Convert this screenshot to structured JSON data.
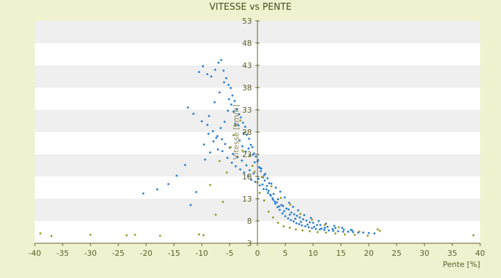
{
  "chart_data": {
    "type": "scatter",
    "title": "VITESSE vs PENTE",
    "xlabel": "Pente [%]",
    "ylabel": "Vitesse [km/h]",
    "xlim": [
      -40,
      40
    ],
    "ylim": [
      3,
      53
    ],
    "x_ticks": [
      -40,
      -35,
      -30,
      -25,
      -20,
      -15,
      -10,
      -5,
      0,
      5,
      10,
      15,
      20,
      25,
      30,
      35,
      40
    ],
    "y_ticks": [
      3,
      8,
      13,
      18,
      23,
      28,
      33,
      38,
      43,
      48,
      53
    ],
    "x_tick_labels": [
      "-40",
      "-35",
      "-30",
      "-25",
      "-20",
      "-15",
      "-10",
      "-5",
      "0",
      "5",
      "10",
      "15",
      "20",
      "25",
      "30",
      "35",
      "40"
    ],
    "y_tick_labels": [
      "3",
      "8",
      "13",
      "18",
      "23",
      "28",
      "33",
      "38",
      "43",
      "48",
      "53"
    ],
    "grid": "horizontal bands",
    "legend": "none",
    "colors": {
      "background": "#eef2cf",
      "band_light": "#ffffff",
      "band_dark": "#efefef",
      "series_main": "#2f7fd0",
      "series_second": "#9a9a2a",
      "axis": "#5c5c2a"
    },
    "series": [
      {
        "color": "#2f7fd0",
        "x": [
          -10.5,
          -9.8,
          -9,
          -8.3,
          -7.6,
          -7,
          -6.5,
          -6.1,
          -5.6,
          -5.2,
          -4.8,
          -4.5,
          -4.1,
          -3.7,
          -3.3,
          -3,
          -2.6,
          -2.2,
          -1.9,
          -1.5,
          -1.2,
          -0.9,
          -0.6,
          -0.3,
          0,
          0.3,
          0.6,
          1,
          1.3,
          1.7,
          2,
          2.4,
          2.8,
          3.2,
          3.6,
          4,
          4.5,
          5,
          5.5,
          6,
          6.5,
          7,
          7.5,
          8,
          8.6,
          9.2,
          9.8,
          10.5,
          11.2,
          12,
          12.8,
          13.6,
          14.5,
          15.4,
          16.3,
          17.2,
          18.1,
          19,
          20,
          21,
          -12.5,
          -11.5,
          -10,
          -9,
          -8,
          -7.2,
          -6.4,
          -5.8,
          -5,
          -4.4,
          -3.6,
          -2.8,
          -2,
          -1.4,
          -0.7,
          0.2,
          0.9,
          1.6,
          2.3,
          3.1,
          3.9,
          4.8,
          5.8,
          6.8,
          7.8,
          9,
          10.2,
          11.5,
          -8.8,
          -7.9,
          -7.1,
          -6.3,
          -5.4,
          -4.6,
          -3.9,
          -3.1,
          -2.4,
          -1.7,
          -1.1,
          -0.4,
          0.4,
          1.1,
          1.9,
          2.7,
          3.5,
          4.3,
          5.2,
          6.1,
          7.1,
          8.2,
          9.4,
          10.7,
          12.1,
          13.5,
          -16,
          -14.5,
          -13,
          -20.5,
          -18,
          -12,
          -11,
          -9.6,
          -8.7,
          -7.7,
          -6.8,
          -6,
          -5.1,
          -4.3,
          -3.4,
          -2.5,
          -1.6,
          -0.8,
          0.1,
          0.7,
          1.4,
          2.1,
          2.9,
          3.7,
          4.6,
          5.6,
          6.6,
          7.6,
          8.8,
          10,
          11.3,
          12.6,
          14,
          15.5,
          17,
          -9.4,
          -8.5,
          -7.4,
          -6.6,
          -5.9,
          -5.3,
          -4.7,
          -4,
          -3.2,
          -2.7,
          -2.1,
          -1.3,
          -0.5,
          0.5,
          1.2,
          1.8,
          2.5,
          3.3,
          4.1,
          4.9,
          5.7,
          6.4,
          7.3,
          8.4,
          9.6,
          11,
          12.3,
          13.8,
          15.2,
          16.8
        ],
        "y": [
          41.5,
          42.8,
          41,
          40.5,
          42,
          43.6,
          44.2,
          41.8,
          40.1,
          38.6,
          37.9,
          36.2,
          35,
          33.1,
          32,
          31.3,
          30.1,
          29.2,
          27.4,
          26.5,
          25.1,
          24.6,
          23.2,
          22.5,
          21.4,
          20.1,
          19.2,
          17.8,
          17.1,
          15.9,
          14.8,
          13.7,
          12.8,
          11.9,
          11.1,
          10.5,
          9.7,
          9.1,
          8.6,
          8.2,
          7.9,
          7.5,
          7.3,
          7,
          6.8,
          6.6,
          6.4,
          6.2,
          6.1,
          6,
          5.9,
          5.8,
          5.7,
          5.6,
          5.6,
          5.5,
          5.4,
          5.4,
          5.3,
          5.2,
          33.5,
          32.1,
          30.4,
          29.6,
          28.2,
          27.1,
          26.4,
          25.3,
          24.5,
          23.1,
          22.4,
          21.6,
          20.5,
          19.4,
          18.7,
          17.5,
          16.2,
          15.1,
          13.9,
          12.4,
          11.3,
          10.2,
          9.4,
          8.5,
          7.8,
          7.2,
          6.7,
          6.3,
          27.6,
          25.9,
          24.1,
          23.7,
          22.2,
          21.1,
          20.3,
          19.6,
          18.9,
          18.1,
          17.3,
          16.8,
          16,
          15.2,
          14.3,
          13.1,
          12.2,
          11.6,
          10.8,
          9.9,
          9.2,
          8.4,
          7.7,
          7.1,
          6.5,
          6.2,
          16.3,
          18.2,
          20.6,
          14.2,
          15.1,
          11.6,
          14.5,
          25.2,
          31.6,
          34.7,
          36.9,
          39.2,
          35.4,
          32.6,
          29.5,
          27.8,
          24.3,
          22.9,
          21.7,
          19.8,
          18.6,
          16.5,
          14.1,
          12.9,
          11.4,
          10.6,
          9.5,
          8.8,
          8.1,
          7.6,
          7.1,
          6.7,
          6.4,
          6.1,
          5.9,
          21.8,
          23.4,
          26.7,
          28.9,
          30.3,
          32.8,
          34.2,
          29.9,
          26.1,
          24.8,
          23.6,
          22.7,
          21.2,
          19.9,
          18.3,
          17.6,
          16.4,
          15.5,
          14.6,
          13.3,
          12.1,
          11.2,
          10.4,
          9.3,
          8.7,
          8,
          7.4,
          6.9,
          6.5,
          6
        ]
      },
      {
        "color": "#9a9a2a",
        "x": [
          -39,
          -37,
          -30,
          -23.5,
          -22,
          -17.5,
          -10.5,
          -9.7,
          -7.5,
          -6.2,
          -5.5,
          -4.8,
          -4,
          -3.1,
          -2.2,
          -1.4,
          -0.5,
          0,
          0.4,
          1.2,
          2,
          2.8,
          3.7,
          4.7,
          5.8,
          6.9,
          8.1,
          9.4,
          10.8,
          12.3,
          14,
          15.7,
          17.5,
          19.8,
          22,
          38.8,
          -8.5,
          -6.8,
          -4.3,
          -2.7,
          -0.9,
          0.8,
          2.5,
          4.2,
          5.9,
          7.7,
          9.8,
          12.1,
          14.6,
          18.3,
          21.6
        ],
        "y": [
          5.2,
          4.6,
          4.9,
          4.8,
          4.9,
          4.7,
          5,
          4.8,
          9.4,
          12.3,
          18.9,
          24.6,
          29.4,
          30.6,
          27.9,
          22.8,
          19.1,
          16.7,
          14.3,
          12.6,
          10.1,
          8.8,
          7.6,
          6.8,
          6.5,
          6.1,
          5.9,
          5.7,
          5.5,
          5.4,
          5.2,
          5,
          4.9,
          4.7,
          5.8,
          4.8,
          16.1,
          21.5,
          27.3,
          23.8,
          20.4,
          17.9,
          15.8,
          13.2,
          11.7,
          9.6,
          8.3,
          7.1,
          6.6,
          5.6,
          6.1
        ]
      }
    ]
  }
}
